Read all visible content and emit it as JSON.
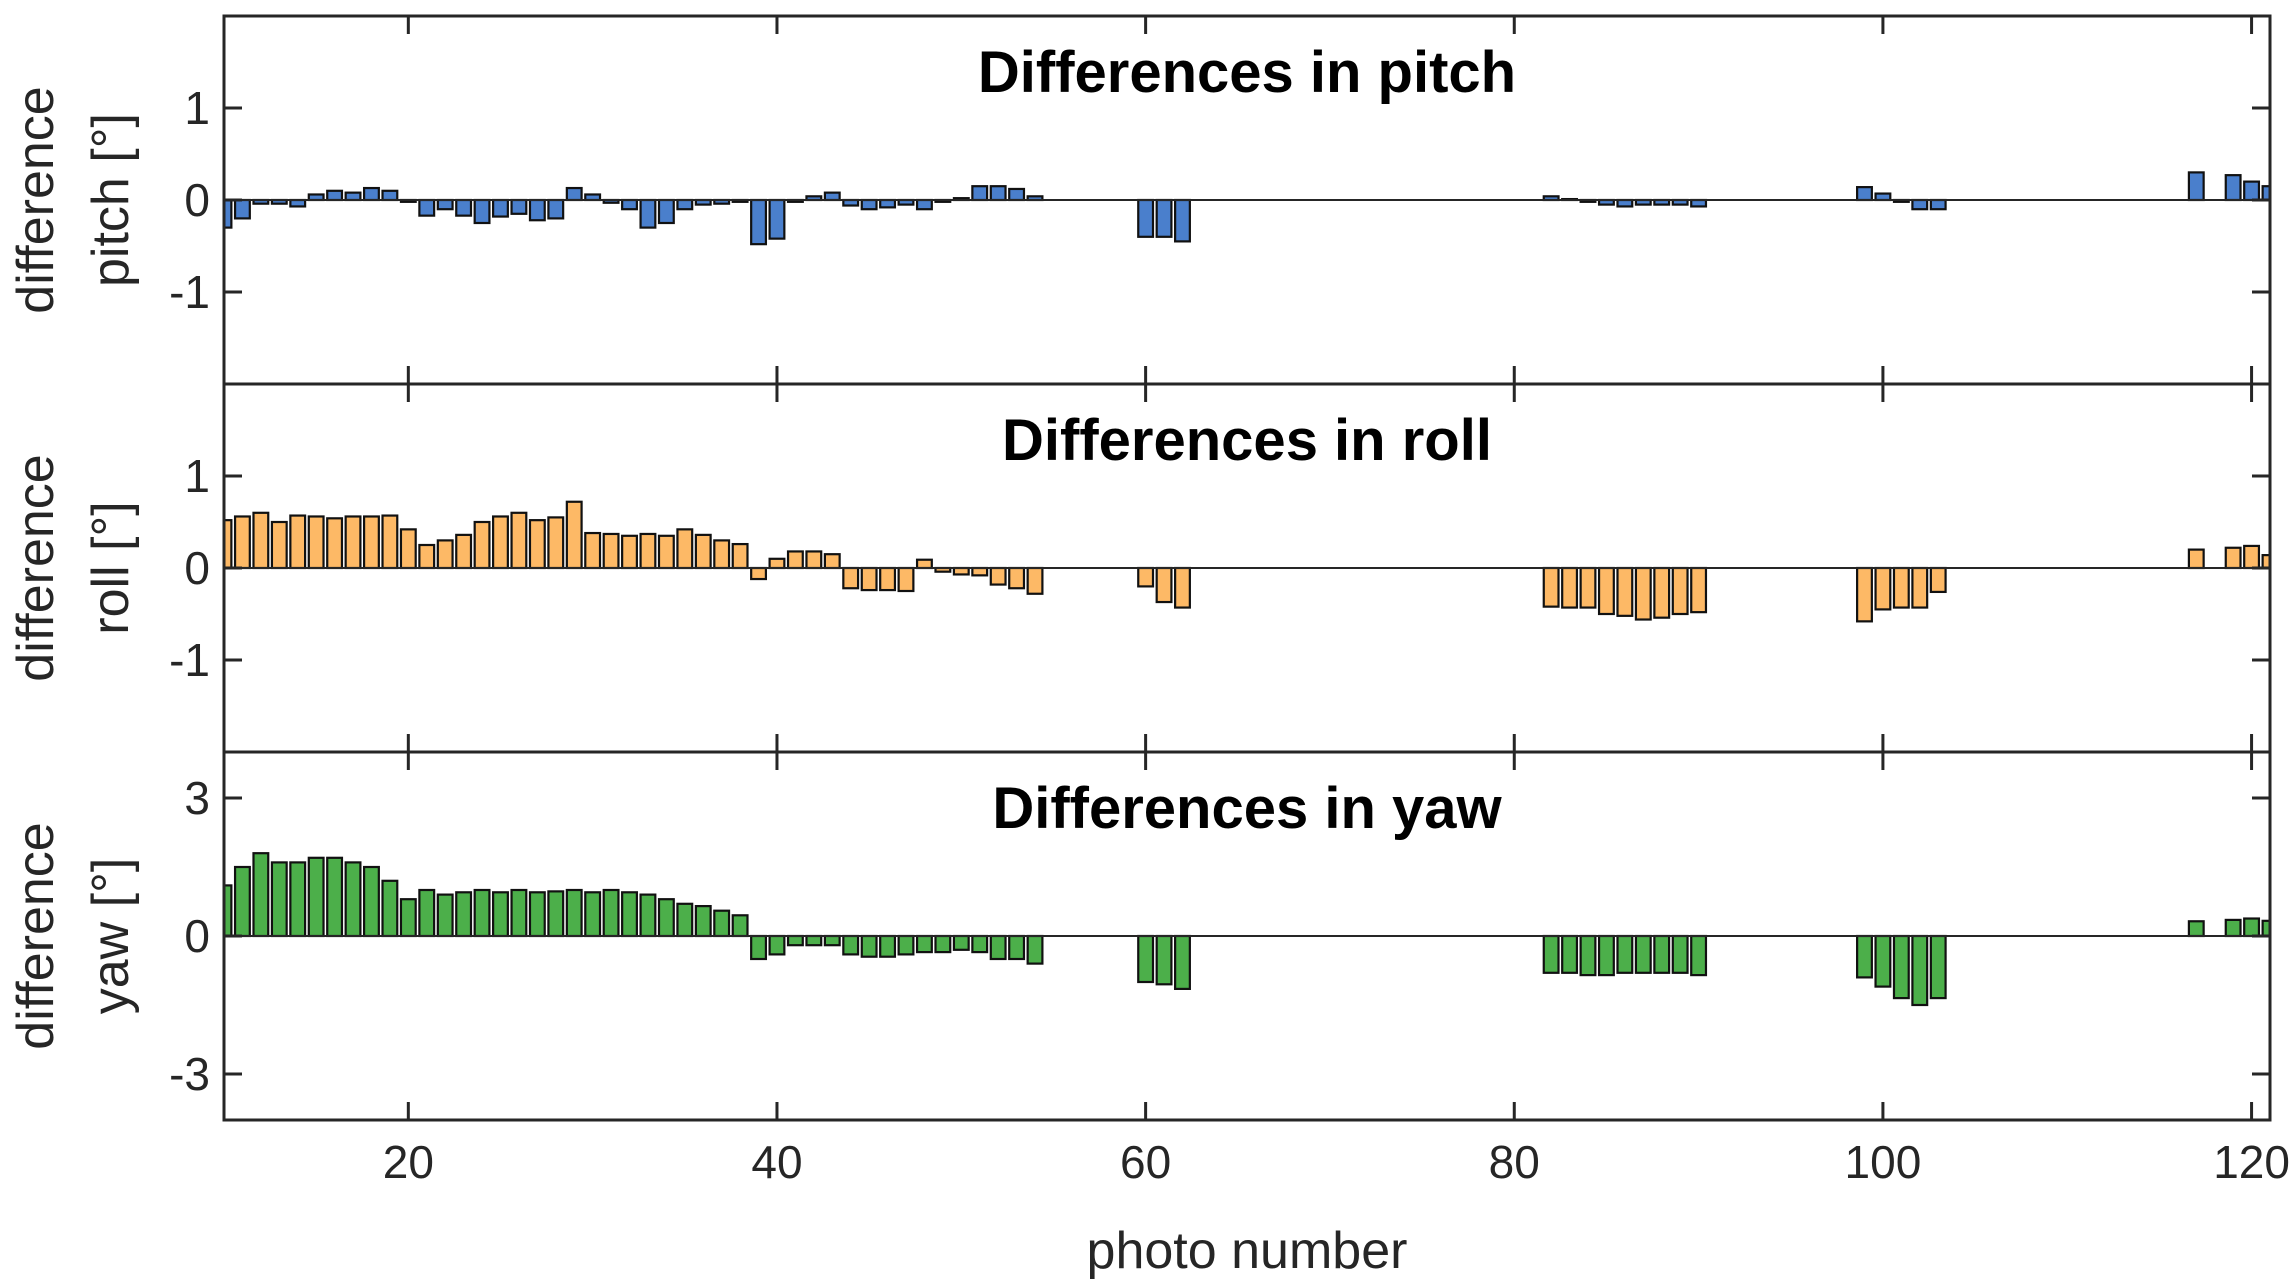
{
  "chart_data": [
    {
      "type": "bar",
      "title": "Differences in pitch",
      "ylabel": "difference",
      "ylabel2": "pitch [°]",
      "ylim": [
        -2,
        2
      ],
      "yticks": [
        -1,
        0,
        1
      ],
      "ytick_labels": [
        "-1",
        "0",
        "1"
      ],
      "color": "#4a7fcc",
      "x": [
        10,
        11,
        12,
        13,
        14,
        15,
        16,
        17,
        18,
        19,
        20,
        21,
        22,
        23,
        24,
        25,
        26,
        27,
        28,
        29,
        30,
        31,
        32,
        33,
        34,
        35,
        36,
        37,
        38,
        39,
        40,
        41,
        42,
        43,
        44,
        45,
        46,
        47,
        48,
        49,
        50,
        51,
        52,
        53,
        54,
        60,
        61,
        62,
        82,
        83,
        84,
        85,
        86,
        87,
        88,
        89,
        90,
        99,
        100,
        101,
        102,
        103,
        117,
        119,
        120,
        121
      ],
      "values": [
        -0.3,
        -0.2,
        -0.04,
        -0.04,
        -0.07,
        0.06,
        0.1,
        0.08,
        0.13,
        0.1,
        -0.02,
        -0.17,
        -0.1,
        -0.17,
        -0.25,
        -0.18,
        -0.15,
        -0.22,
        -0.2,
        0.13,
        0.06,
        -0.03,
        -0.1,
        -0.3,
        -0.25,
        -0.1,
        -0.05,
        -0.04,
        -0.02,
        -0.48,
        -0.42,
        -0.02,
        0.04,
        0.08,
        -0.06,
        -0.1,
        -0.08,
        -0.05,
        -0.1,
        -0.02,
        0.02,
        0.15,
        0.15,
        0.12,
        0.04,
        -0.4,
        -0.4,
        -0.45,
        0.04,
        0.01,
        -0.02,
        -0.05,
        -0.07,
        -0.05,
        -0.05,
        -0.05,
        -0.07,
        0.14,
        0.07,
        -0.02,
        -0.1,
        -0.1,
        0.3,
        0.27,
        0.2,
        0.15
      ]
    },
    {
      "type": "bar",
      "title": "Differences in roll",
      "ylabel": "difference",
      "ylabel2": "roll [°]",
      "ylim": [
        -2,
        2
      ],
      "yticks": [
        -1,
        0,
        1
      ],
      "ytick_labels": [
        "-1",
        "0",
        "1"
      ],
      "color": "#fdb966",
      "x": [
        10,
        11,
        12,
        13,
        14,
        15,
        16,
        17,
        18,
        19,
        20,
        21,
        22,
        23,
        24,
        25,
        26,
        27,
        28,
        29,
        30,
        31,
        32,
        33,
        34,
        35,
        36,
        37,
        38,
        39,
        40,
        41,
        42,
        43,
        44,
        45,
        46,
        47,
        48,
        49,
        50,
        51,
        52,
        53,
        54,
        60,
        61,
        62,
        82,
        83,
        84,
        85,
        86,
        87,
        88,
        89,
        90,
        99,
        100,
        101,
        102,
        103,
        117,
        119,
        120,
        121
      ],
      "values": [
        0.52,
        0.56,
        0.6,
        0.5,
        0.57,
        0.56,
        0.54,
        0.56,
        0.56,
        0.57,
        0.42,
        0.25,
        0.3,
        0.36,
        0.5,
        0.56,
        0.6,
        0.52,
        0.55,
        0.72,
        0.38,
        0.37,
        0.35,
        0.37,
        0.35,
        0.42,
        0.36,
        0.3,
        0.26,
        -0.12,
        0.1,
        0.18,
        0.18,
        0.15,
        -0.22,
        -0.24,
        -0.24,
        -0.25,
        0.09,
        -0.04,
        -0.07,
        -0.08,
        -0.18,
        -0.22,
        -0.28,
        -0.2,
        -0.37,
        -0.43,
        -0.42,
        -0.43,
        -0.43,
        -0.5,
        -0.52,
        -0.56,
        -0.54,
        -0.5,
        -0.48,
        -0.58,
        -0.45,
        -0.43,
        -0.43,
        -0.26,
        0.2,
        0.22,
        0.24,
        0.14
      ]
    },
    {
      "type": "bar",
      "title": "Differences in yaw",
      "ylabel": "difference",
      "ylabel2": "yaw [°]",
      "xlabel": "photo number",
      "ylim": [
        -4,
        4
      ],
      "yticks": [
        -3,
        0,
        3
      ],
      "ytick_labels": [
        "-3",
        "0",
        "3"
      ],
      "xlim": [
        10,
        121
      ],
      "xticks": [
        20,
        40,
        60,
        80,
        100,
        120
      ],
      "xtick_labels": [
        "20",
        "40",
        "60",
        "80",
        "100",
        "120"
      ],
      "color": "#4caf4a",
      "x": [
        10,
        11,
        12,
        13,
        14,
        15,
        16,
        17,
        18,
        19,
        20,
        21,
        22,
        23,
        24,
        25,
        26,
        27,
        28,
        29,
        30,
        31,
        32,
        33,
        34,
        35,
        36,
        37,
        38,
        39,
        40,
        41,
        42,
        43,
        44,
        45,
        46,
        47,
        48,
        49,
        50,
        51,
        52,
        53,
        54,
        60,
        61,
        62,
        82,
        83,
        84,
        85,
        86,
        87,
        88,
        89,
        90,
        99,
        100,
        101,
        102,
        103,
        117,
        119,
        120,
        121
      ],
      "values": [
        1.1,
        1.5,
        1.8,
        1.6,
        1.6,
        1.7,
        1.7,
        1.6,
        1.5,
        1.2,
        0.8,
        1.0,
        0.9,
        0.95,
        1.0,
        0.95,
        1.0,
        0.95,
        0.97,
        1.0,
        0.95,
        1.0,
        0.95,
        0.9,
        0.8,
        0.7,
        0.65,
        0.55,
        0.45,
        -0.5,
        -0.4,
        -0.2,
        -0.2,
        -0.2,
        -0.4,
        -0.45,
        -0.45,
        -0.4,
        -0.35,
        -0.35,
        -0.3,
        -0.35,
        -0.5,
        -0.5,
        -0.6,
        -1.0,
        -1.05,
        -1.15,
        -0.8,
        -0.8,
        -0.85,
        -0.85,
        -0.8,
        -0.8,
        -0.8,
        -0.8,
        -0.85,
        -0.9,
        -1.1,
        -1.35,
        -1.5,
        -1.35,
        0.32,
        0.35,
        0.38,
        0.33
      ]
    }
  ]
}
